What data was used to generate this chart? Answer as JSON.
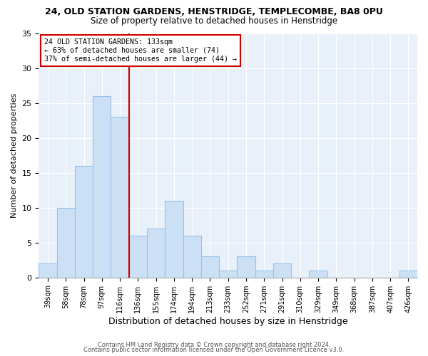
{
  "title1": "24, OLD STATION GARDENS, HENSTRIDGE, TEMPLECOMBE, BA8 0PU",
  "title2": "Size of property relative to detached houses in Henstridge",
  "xlabel": "Distribution of detached houses by size in Henstridge",
  "ylabel": "Number of detached properties",
  "bin_labels": [
    "39sqm",
    "58sqm",
    "78sqm",
    "97sqm",
    "116sqm",
    "136sqm",
    "155sqm",
    "174sqm",
    "194sqm",
    "213sqm",
    "233sqm",
    "252sqm",
    "271sqm",
    "291sqm",
    "310sqm",
    "329sqm",
    "349sqm",
    "368sqm",
    "387sqm",
    "407sqm",
    "426sqm"
  ],
  "bar_heights": [
    2,
    10,
    16,
    26,
    23,
    6,
    7,
    11,
    6,
    3,
    1,
    3,
    1,
    2,
    0,
    1,
    0,
    0,
    0,
    0,
    1
  ],
  "bar_color": "#cce0f5",
  "bar_edge_color": "#99c2e8",
  "vline_x": 5,
  "vline_color": "#cc0000",
  "annotation_title": "24 OLD STATION GARDENS: 133sqm",
  "annotation_line1": "← 63% of detached houses are smaller (74)",
  "annotation_line2": "37% of semi-detached houses are larger (44) →",
  "annotation_box_color": "white",
  "annotation_box_edge_color": "#cc0000",
  "ylim": [
    0,
    35
  ],
  "yticks": [
    0,
    5,
    10,
    15,
    20,
    25,
    30,
    35
  ],
  "footer1": "Contains HM Land Registry data © Crown copyright and database right 2024.",
  "footer2": "Contains public sector information licensed under the Open Government Licence v3.0.",
  "bg_color": "#e8f0fa"
}
